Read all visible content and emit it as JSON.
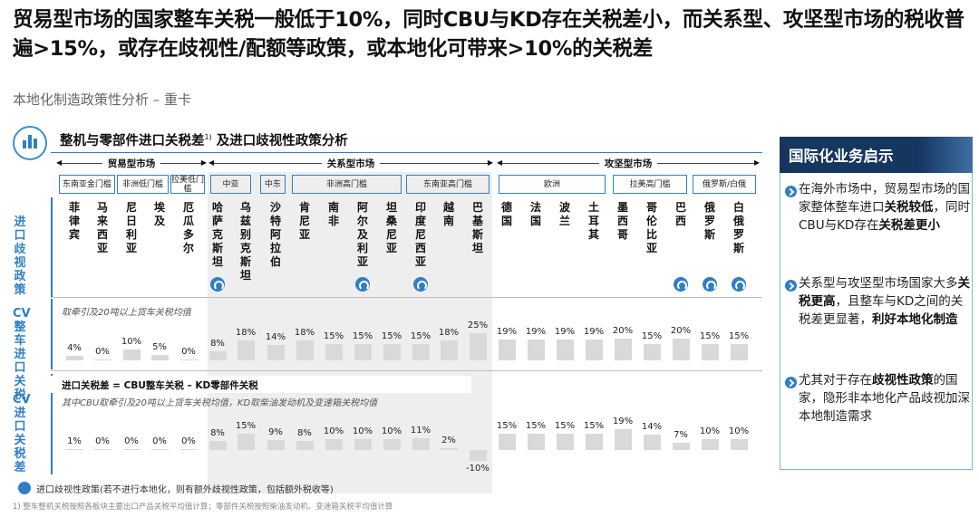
{
  "headline": "贸易型市场的国家整车关税一般低于10%，同时CBU与KD存在关税差小，而关系型、攻坚型市场的税收普遍>15%，或存在歧视性/配额等政策，或本地化可带来>10%的关税差",
  "subtitle": "本地化制造政策性分析 – 重卡",
  "panel": {
    "title": "整机与零部件进口关税差",
    "title_sup": "1)",
    "title_suffix": " 及进口歧视性政策分析"
  },
  "groups": [
    "贸易型市场",
    "关系型市场",
    "攻坚型市场"
  ],
  "subgroups": [
    "东南亚金门槛",
    "非洲低门槛",
    "拉美低门槛",
    "中亚",
    "中东",
    "非洲高门槛",
    "东南亚高门槛",
    "欧洲",
    "拉美高门槛",
    "俄罗斯/白俄"
  ],
  "row_labels": {
    "policy": "进口歧视政策",
    "cv_tariff": "CV整车进口关税",
    "cv_diff": "CV进口关税差"
  },
  "countries": [
    {
      "name": "菲律宾",
      "discriminatory": false,
      "tariff": "4%",
      "diff": "1%"
    },
    {
      "name": "马来西亚",
      "discriminatory": false,
      "tariff": "0%",
      "diff": "0%"
    },
    {
      "name": "尼日利亚",
      "discriminatory": false,
      "tariff": "10%",
      "diff": "0%"
    },
    {
      "name": "埃及",
      "discriminatory": false,
      "tariff": "5%",
      "diff": "0%"
    },
    {
      "name": "厄瓜多尔",
      "discriminatory": false,
      "tariff": "0%",
      "diff": "0%"
    },
    {
      "name": "哈萨克斯坦",
      "discriminatory": true,
      "tariff": "8%",
      "diff": "8%"
    },
    {
      "name": "乌兹别克斯坦",
      "discriminatory": false,
      "tariff": "18%",
      "diff": "15%"
    },
    {
      "name": "沙特阿拉伯",
      "discriminatory": false,
      "tariff": "14%",
      "diff": "9%"
    },
    {
      "name": "肯尼亚",
      "discriminatory": false,
      "tariff": "18%",
      "diff": "8%"
    },
    {
      "name": "南非",
      "discriminatory": false,
      "tariff": "15%",
      "diff": "10%"
    },
    {
      "name": "阿尔及利亚",
      "discriminatory": true,
      "tariff": "15%",
      "diff": "10%"
    },
    {
      "name": "坦桑尼亚",
      "discriminatory": false,
      "tariff": "15%",
      "diff": "10%"
    },
    {
      "name": "印度尼西亚",
      "discriminatory": true,
      "tariff": "15%",
      "diff": "11%"
    },
    {
      "name": "越南",
      "discriminatory": false,
      "tariff": "18%",
      "diff": "2%"
    },
    {
      "name": "巴基斯坦",
      "discriminatory": false,
      "tariff": "25%",
      "diff": "-10%"
    },
    {
      "name": "德国",
      "discriminatory": false,
      "tariff": "19%",
      "diff": "15%"
    },
    {
      "name": "法国",
      "discriminatory": false,
      "tariff": "19%",
      "diff": "15%"
    },
    {
      "name": "波兰",
      "discriminatory": false,
      "tariff": "19%",
      "diff": "15%"
    },
    {
      "name": "土耳其",
      "discriminatory": false,
      "tariff": "19%",
      "diff": "15%"
    },
    {
      "name": "墨西哥",
      "discriminatory": false,
      "tariff": "20%",
      "diff": "19%"
    },
    {
      "name": "哥伦比亚",
      "discriminatory": false,
      "tariff": "15%",
      "diff": "14%"
    },
    {
      "name": "巴西",
      "discriminatory": true,
      "tariff": "20%",
      "diff": "7%"
    },
    {
      "name": "俄罗斯",
      "discriminatory": true,
      "tariff": "15%",
      "diff": "10%"
    },
    {
      "name": "白俄罗斯",
      "discriminatory": true,
      "tariff": "15%",
      "diff": "10%"
    }
  ],
  "notes": {
    "tariff_note": "取牵引及20吨以上货车关税均值",
    "diff_title": "进口关税差 = CBU整车关税 – KD零部件关税",
    "diff_note": "其中CBU取牵引及20吨以上货车关税均值，KD取柴油发动机及变速箱关税均值"
  },
  "legend": "进口歧视性政策(若不进行本地化，则有额外歧视性政策，包括额外税收等)",
  "footnote": "1) 整车整机关税按照各板块主要出口产品关税平均值计算；零部件关税按照柴油发动机、变速箱关税平均值计算",
  "sidebar": {
    "title": "国际化业务启示",
    "items": [
      [
        {
          "t": "在海外市场中，贸易型市场的国家整体整车进口",
          "b": false
        },
        {
          "t": "关税较低",
          "b": true
        },
        {
          "t": "，同时CBU与KD存在",
          "b": false
        },
        {
          "t": "关税差更小",
          "b": true
        }
      ],
      [
        {
          "t": "关系型与攻坚型市场国家大多",
          "b": false
        },
        {
          "t": "关税更高",
          "b": true
        },
        {
          "t": "，且整车与KD之间的关税差更显著，",
          "b": false
        },
        {
          "t": "利好本地化制造",
          "b": true
        }
      ],
      [
        {
          "t": "尤其对于存在",
          "b": false
        },
        {
          "t": "歧视性政策",
          "b": true
        },
        {
          "t": "的国家，隐形非本地化产品歧视加深本地制造需求",
          "b": false
        }
      ]
    ]
  },
  "colors": {
    "accent": "#2f7fc6",
    "sidebar_head": "#15365f",
    "bar": "#d9d9d9",
    "shade": "#eeeeee"
  },
  "chart_data": {
    "type": "bar",
    "categories": [
      "菲律宾",
      "马来西亚",
      "尼日利亚",
      "埃及",
      "厄瓜多尔",
      "哈萨克斯坦",
      "乌兹别克斯坦",
      "沙特阿拉伯",
      "肯尼亚",
      "南非",
      "阿尔及利亚",
      "坦桑尼亚",
      "印度尼西亚",
      "越南",
      "巴基斯坦",
      "德国",
      "法国",
      "波兰",
      "土耳其",
      "墨西哥",
      "哥伦比亚",
      "巴西",
      "俄罗斯",
      "白俄罗斯"
    ],
    "series": [
      {
        "name": "CV整车进口关税",
        "values": [
          4,
          0,
          10,
          5,
          0,
          8,
          18,
          14,
          18,
          15,
          15,
          15,
          15,
          18,
          25,
          19,
          19,
          19,
          19,
          20,
          15,
          20,
          15,
          15
        ]
      },
      {
        "name": "CV进口关税差",
        "values": [
          1,
          0,
          0,
          0,
          0,
          8,
          15,
          9,
          8,
          10,
          10,
          10,
          11,
          2,
          -10,
          15,
          15,
          15,
          15,
          19,
          14,
          7,
          10,
          10
        ]
      }
    ]
  }
}
